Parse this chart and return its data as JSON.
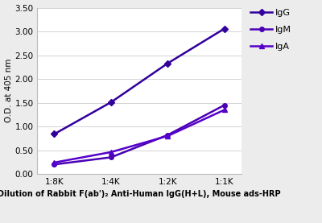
{
  "x_labels": [
    "1:8K",
    "1:4K",
    "1:2K",
    "1:1K"
  ],
  "x_values": [
    0,
    1,
    2,
    3
  ],
  "IgG": [
    0.84,
    1.51,
    2.33,
    3.06
  ],
  "IgM": [
    0.2,
    0.35,
    0.82,
    1.45
  ],
  "IgA": [
    0.24,
    0.46,
    0.8,
    1.35
  ],
  "IgG_color": "#32009c",
  "IgM_color": "#4a00b4",
  "IgA_color": "#5500cc",
  "ylabel": "O.D. at 405 nm",
  "xlabel": "Dilution of Rabbit F(ab')₂ Anti-Human IgG(H+L), Mouse ads-HRP",
  "ylim": [
    0.0,
    3.5
  ],
  "yticks": [
    0.0,
    0.5,
    1.0,
    1.5,
    2.0,
    2.5,
    3.0,
    3.5
  ],
  "legend_labels": [
    "IgG",
    "IgM",
    "IgA"
  ],
  "IgG_marker": "D",
  "IgM_marker": "o",
  "IgA_marker": "^",
  "markersize": 4,
  "linewidth": 1.8,
  "background_color": "#ececec",
  "plot_bg_color": "#ffffff",
  "grid_color": "#cccccc",
  "spine_color": "#bbbbbb"
}
